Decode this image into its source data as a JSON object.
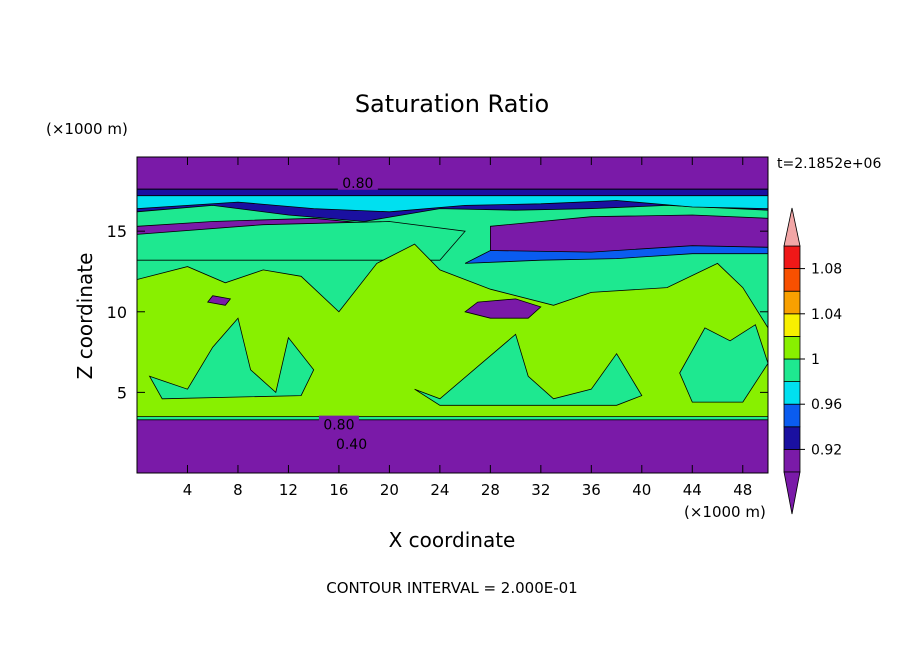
{
  "chart_data": {
    "type": "heatmap",
    "title": "Saturation Ratio",
    "xlabel": "X coordinate",
    "ylabel": "Z coordinate",
    "x_unit": "(×1000 m)",
    "y_unit": "(×1000 m)",
    "time_label": "t=2.1852e+06",
    "footer": "CONTOUR INTERVAL = 2.000E-01",
    "xlim": [
      0,
      50
    ],
    "ylim": [
      0,
      19.6
    ],
    "x_ticks": [
      4,
      8,
      12,
      16,
      20,
      24,
      28,
      32,
      36,
      40,
      44,
      48
    ],
    "y_ticks": [
      5,
      10,
      15
    ],
    "contour_labels": [
      {
        "text": "0.80",
        "x": 17.5,
        "z": 18.0
      },
      {
        "text": "0.80",
        "x": 16.0,
        "z": 3.0
      },
      {
        "text": "0.40",
        "x": 17.0,
        "z": 1.8
      }
    ],
    "colorbar": {
      "levels": [
        0.9,
        0.92,
        0.94,
        0.96,
        0.98,
        1.0,
        1.02,
        1.04,
        1.06,
        1.08,
        1.1
      ],
      "tick_labels": [
        "1.08",
        "1.04",
        "1",
        "0.96",
        "0.92"
      ],
      "tick_values": [
        1.08,
        1.04,
        1.0,
        0.96,
        0.92
      ],
      "colors": [
        "#7a1aa8",
        "#1a10a0",
        "#0a5cf0",
        "#00e0f0",
        "#1ee890",
        "#88f000",
        "#f8f000",
        "#f8a000",
        "#f85000",
        "#f01818"
      ],
      "under_color": "#7a1aa8",
      "over_color": "#f2a6a6"
    },
    "regions": [
      {
        "level": 0,
        "polygon": [
          [
            0,
            0
          ],
          [
            50,
            0
          ],
          [
            50,
            3.3
          ],
          [
            0,
            3.3
          ]
        ]
      },
      {
        "level": 0,
        "polygon": [
          [
            0,
            17.6
          ],
          [
            50,
            17.6
          ],
          [
            50,
            19.6
          ],
          [
            0,
            19.6
          ]
        ]
      },
      {
        "level": 1,
        "polygon": [
          [
            0,
            16.2
          ],
          [
            6,
            16.6
          ],
          [
            12,
            16.0
          ],
          [
            18,
            15.6
          ],
          [
            24,
            16.4
          ],
          [
            30,
            16.3
          ],
          [
            36,
            16.4
          ],
          [
            42,
            16.6
          ],
          [
            50,
            16.3
          ],
          [
            50,
            17.6
          ],
          [
            0,
            17.6
          ]
        ]
      },
      {
        "level": 3,
        "polygon": [
          [
            0,
            16.4
          ],
          [
            8,
            16.8
          ],
          [
            14,
            16.4
          ],
          [
            20,
            16.2
          ],
          [
            26,
            16.6
          ],
          [
            32,
            16.7
          ],
          [
            38,
            16.9
          ],
          [
            44,
            16.5
          ],
          [
            50,
            16.4
          ],
          [
            50,
            17.2
          ],
          [
            0,
            17.2
          ]
        ]
      },
      {
        "level": 0,
        "polygon": [
          [
            0,
            14.6
          ],
          [
            8,
            14.6
          ],
          [
            14,
            14.4
          ],
          [
            20,
            14.0
          ],
          [
            22,
            15.2
          ],
          [
            14,
            15.8
          ],
          [
            6,
            15.6
          ],
          [
            0,
            15.3
          ]
        ]
      },
      {
        "level": 0,
        "polygon": [
          [
            28,
            13.7
          ],
          [
            36,
            13.6
          ],
          [
            44,
            14.0
          ],
          [
            50,
            14.0
          ],
          [
            50,
            15.8
          ],
          [
            44,
            16.0
          ],
          [
            36,
            15.9
          ],
          [
            28,
            15.3
          ]
        ]
      },
      {
        "level": 2,
        "polygon": [
          [
            26,
            13.0
          ],
          [
            32,
            13.2
          ],
          [
            38,
            13.3
          ],
          [
            44,
            13.6
          ],
          [
            50,
            13.6
          ],
          [
            50,
            14.0
          ],
          [
            44,
            14.1
          ],
          [
            36,
            13.7
          ],
          [
            28,
            13.8
          ]
        ]
      },
      {
        "level": 4,
        "polygon": [
          [
            0,
            13.2
          ],
          [
            24,
            13.2
          ],
          [
            26,
            15.0
          ],
          [
            20,
            15.6
          ],
          [
            10,
            15.4
          ],
          [
            0,
            14.8
          ]
        ]
      },
      {
        "level": 5,
        "polygon": [
          [
            0,
            3.5
          ],
          [
            50,
            3.5
          ],
          [
            50,
            9.0
          ],
          [
            48,
            11.5
          ],
          [
            46,
            13.0
          ],
          [
            42,
            11.5
          ],
          [
            36,
            11.2
          ],
          [
            33,
            10.4
          ],
          [
            28,
            11.4
          ],
          [
            24,
            12.6
          ],
          [
            22,
            14.2
          ],
          [
            19,
            13.0
          ],
          [
            16,
            10.0
          ],
          [
            13,
            12.2
          ],
          [
            10,
            12.6
          ],
          [
            7,
            11.8
          ],
          [
            4,
            12.8
          ],
          [
            0,
            12.0
          ]
        ]
      },
      {
        "level": 4,
        "polygon": [
          [
            1,
            6.0
          ],
          [
            4,
            5.2
          ],
          [
            6,
            7.8
          ],
          [
            8,
            9.6
          ],
          [
            9,
            6.4
          ],
          [
            11,
            5.0
          ],
          [
            12,
            8.4
          ],
          [
            14,
            6.4
          ],
          [
            13,
            4.8
          ],
          [
            2,
            4.6
          ]
        ]
      },
      {
        "level": 4,
        "polygon": [
          [
            22,
            5.2
          ],
          [
            24,
            4.6
          ],
          [
            27,
            6.6
          ],
          [
            30,
            8.6
          ],
          [
            31,
            6.0
          ],
          [
            33,
            4.6
          ],
          [
            36,
            5.2
          ],
          [
            38,
            7.4
          ],
          [
            40,
            4.8
          ],
          [
            38,
            4.2
          ],
          [
            24,
            4.2
          ]
        ]
      },
      {
        "level": 4,
        "polygon": [
          [
            43,
            6.2
          ],
          [
            45,
            9.0
          ],
          [
            47,
            8.2
          ],
          [
            49,
            9.2
          ],
          [
            50,
            6.8
          ],
          [
            48,
            4.4
          ],
          [
            44,
            4.4
          ]
        ]
      },
      {
        "level": 0,
        "polygon": [
          [
            26,
            10.0
          ],
          [
            28,
            9.6
          ],
          [
            31,
            9.6
          ],
          [
            32,
            10.3
          ],
          [
            30,
            10.8
          ],
          [
            27,
            10.6
          ]
        ]
      },
      {
        "level": 0,
        "polygon": [
          [
            5.6,
            10.6
          ],
          [
            7,
            10.4
          ],
          [
            7.4,
            10.8
          ],
          [
            6,
            11.0
          ]
        ]
      }
    ]
  }
}
